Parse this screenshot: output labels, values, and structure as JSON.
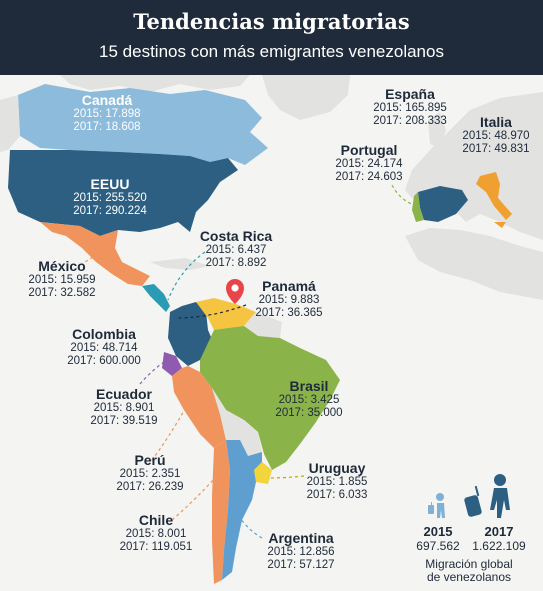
{
  "header": {
    "title": "Tendencias migratorias",
    "subtitle": "15 destinos con más emigrantes venezolanos"
  },
  "countries": [
    {
      "key": "canada",
      "name": "Canadá",
      "v2015": "2015: 17.898",
      "v2017": "2017: 18.608",
      "color": "#8dbbdc"
    },
    {
      "key": "eeuu",
      "name": "EEUU",
      "v2015": "2015: 255.520",
      "v2017": "2017: 290.224",
      "color": "#2c5f82"
    },
    {
      "key": "mexico",
      "name": "México",
      "v2015": "2015: 15.959",
      "v2017": "2017: 32.582",
      "color": "#f0935c"
    },
    {
      "key": "costarica",
      "name": "Costa Rica",
      "v2015": "2015: 6.437",
      "v2017": "2017: 8.892",
      "color": "#2a9bb5"
    },
    {
      "key": "panama",
      "name": "Panamá",
      "v2015": "2015: 9.883",
      "v2017": "2017: 36.365",
      "color": "#1e2a3a"
    },
    {
      "key": "colombia",
      "name": "Colombia",
      "v2015": "2015: 48.714",
      "v2017": "2017: 600.000",
      "color": "#2c5f82"
    },
    {
      "key": "ecuador",
      "name": "Ecuador",
      "v2015": "2015: 8.901",
      "v2017": "2017: 39.519",
      "color": "#8e5bb0"
    },
    {
      "key": "peru",
      "name": "Perú",
      "v2015": "2015: 2.351",
      "v2017": "2017: 26.239",
      "color": "#f0935c"
    },
    {
      "key": "chile",
      "name": "Chile",
      "v2015": "2015: 8.001",
      "v2017": "2017: 119.051",
      "color": "#f0935c"
    },
    {
      "key": "brasil",
      "name": "Brasil",
      "v2015": "2015: 3.425",
      "v2017": "2017: 35.000",
      "color": "#8ab34a"
    },
    {
      "key": "uruguay",
      "name": "Uruguay",
      "v2015": "2015: 1.855",
      "v2017": "2017: 6.033",
      "color": "#f2d43b"
    },
    {
      "key": "argentina",
      "name": "Argentina",
      "v2015": "2015: 12.856",
      "v2017": "2017: 57.127",
      "color": "#5f9fcf"
    },
    {
      "key": "espana",
      "name": "España",
      "v2015": "2015: 165.895",
      "v2017": "2017: 208.333",
      "color": "#2c5f82"
    },
    {
      "key": "portugal",
      "name": "Portugal",
      "v2015": "2015: 24.174",
      "v2017": "2017: 24.603",
      "color": "#8ab34a"
    },
    {
      "key": "italia",
      "name": "Italia",
      "v2015": "2015: 48.970",
      "v2017": "2017: 49.831",
      "color": "#f0a030"
    }
  ],
  "summary": {
    "y2015": "2015",
    "val2015": "697.562",
    "y2017": "2017",
    "val2017": "1.622.109",
    "caption_line1": "Migración global",
    "caption_line2": "de venezolanos"
  },
  "icons": {
    "venezuela_marker": "map-pin-icon",
    "traveler_2015": "traveler-luggage-icon",
    "traveler_2017": "traveler-luggage-icon"
  },
  "colors": {
    "header_bg": "#1f2a3b",
    "venezuela": "#f5c542",
    "marker": "#e8454a",
    "land_other": "#e2e2e0",
    "ocean": "#f4f4f2"
  }
}
